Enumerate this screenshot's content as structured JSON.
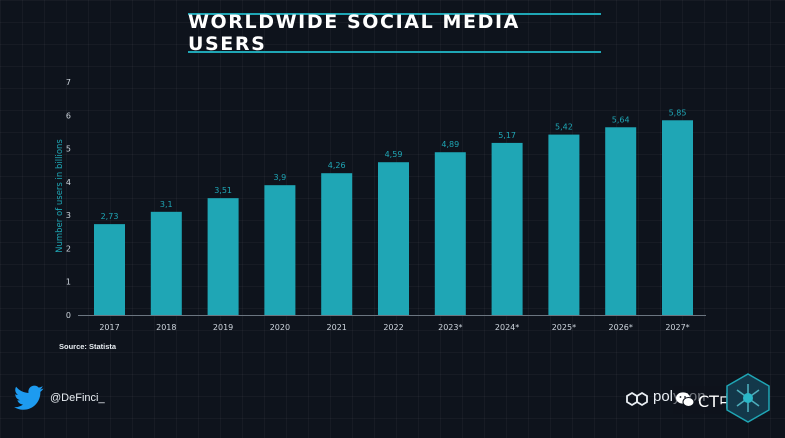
{
  "header": {
    "title": "WORLDWIDE SOCIAL MEDIA USERS"
  },
  "source": "Source: Statista",
  "footer": {
    "handle": "@DeFinci_",
    "brand": "polygon",
    "watermark": "CT中文"
  },
  "colors": {
    "bar": "#1fa6b5",
    "accent": "#1fa6b5",
    "background": "#0e131c"
  },
  "chart_data": {
    "type": "bar",
    "title": "WORLDWIDE SOCIAL MEDIA USERS",
    "xlabel": "",
    "ylabel": "Number of users in billions",
    "ylim": [
      0,
      7
    ],
    "yticks": [
      "0",
      "1",
      "2",
      "3",
      "4",
      "5",
      "6",
      "7"
    ],
    "grid": false,
    "categories": [
      "2017",
      "2018",
      "2019",
      "2020",
      "2021",
      "2022",
      "2023*",
      "2024*",
      "2025*",
      "2026*",
      "2027*"
    ],
    "values": [
      2.73,
      3.1,
      3.51,
      3.9,
      4.26,
      4.59,
      4.89,
      5.17,
      5.42,
      5.64,
      5.85
    ],
    "labels": [
      "2,73",
      "3,1",
      "3,51",
      "3,9",
      "4,26",
      "4,59",
      "4,89",
      "5,17",
      "5,42",
      "5,64",
      "5,85"
    ]
  }
}
